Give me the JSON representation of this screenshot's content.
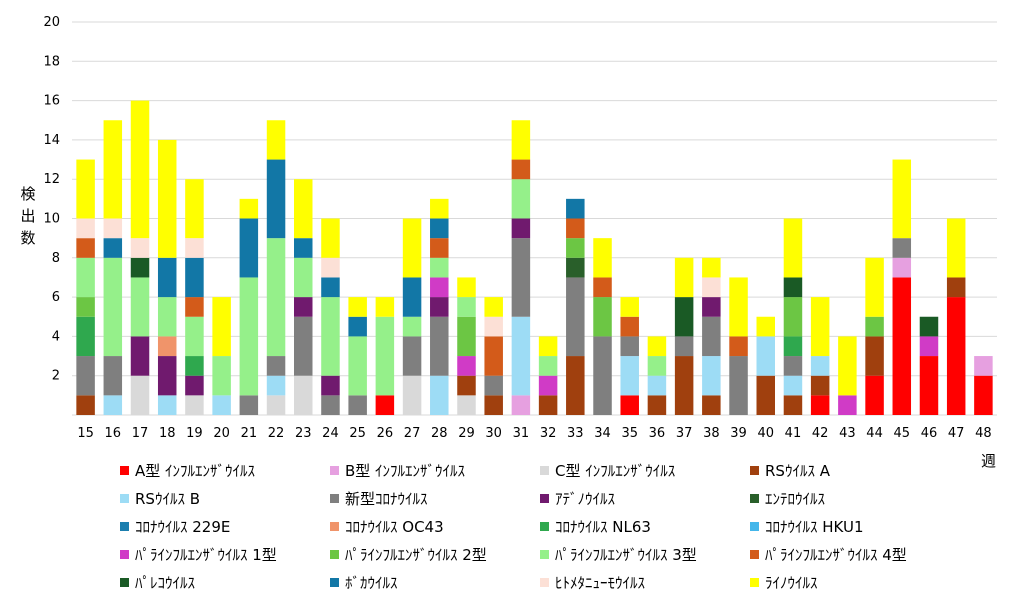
{
  "chart_data": {
    "type": "bar",
    "stacked": true,
    "title": "",
    "ylabel": "検出数",
    "xlabel": "週",
    "ylim": [
      0,
      20
    ],
    "yticks": [
      2,
      4,
      6,
      8,
      10,
      12,
      14,
      16,
      18,
      20
    ],
    "grid": true,
    "categories": [
      "15",
      "16",
      "17",
      "18",
      "19",
      "20",
      "21",
      "22",
      "23",
      "24",
      "25",
      "26",
      "27",
      "28",
      "29",
      "30",
      "31",
      "32",
      "33",
      "34",
      "35",
      "36",
      "37",
      "38",
      "39",
      "40",
      "41",
      "42",
      "43",
      "44",
      "45",
      "46",
      "47",
      "48"
    ],
    "series": [
      {
        "name": "A型 ｲﾝﾌﾙｴﾝｻﾞｳｲﾙｽ",
        "color": "#FF0000",
        "values": [
          0,
          0,
          0,
          0,
          0,
          0,
          0,
          0,
          0,
          0,
          0,
          1,
          0,
          0,
          0,
          0,
          0,
          0,
          0,
          0,
          1,
          0,
          0,
          0,
          0,
          0,
          0,
          1,
          0,
          2,
          7,
          3,
          6,
          2
        ]
      },
      {
        "name": "B型 ｲﾝﾌﾙｴﾝｻﾞｳｲﾙｽ",
        "color": "#E6A0E0",
        "values": [
          0,
          0,
          0,
          0,
          0,
          0,
          0,
          0,
          0,
          0,
          0,
          0,
          0,
          0,
          0,
          0,
          1,
          0,
          0,
          0,
          0,
          0,
          0,
          0,
          0,
          0,
          0,
          0,
          0,
          0,
          1,
          0,
          0,
          1
        ]
      },
      {
        "name": "C型 ｲﾝﾌﾙｴﾝｻﾞｳｲﾙｽ",
        "color": "#D9D9D9",
        "values": [
          0,
          0,
          2,
          0,
          1,
          0,
          0,
          1,
          2,
          0,
          0,
          0,
          2,
          0,
          1,
          0,
          0,
          0,
          0,
          0,
          0,
          0,
          0,
          0,
          0,
          0,
          0,
          0,
          0,
          0,
          0,
          0,
          0,
          0
        ]
      },
      {
        "name": "RSｳｲﾙｽ A",
        "color": "#A0400E",
        "values": [
          1,
          0,
          0,
          0,
          0,
          0,
          0,
          0,
          0,
          0,
          0,
          0,
          0,
          0,
          1,
          1,
          0,
          1,
          3,
          0,
          0,
          1,
          3,
          1,
          0,
          2,
          1,
          1,
          0,
          2,
          0,
          0,
          1,
          0
        ]
      },
      {
        "name": "RSｳｲﾙｽ B",
        "color": "#9DDCF5",
        "values": [
          0,
          1,
          0,
          1,
          0,
          1,
          0,
          1,
          0,
          0,
          0,
          0,
          0,
          2,
          0,
          0,
          4,
          0,
          0,
          0,
          2,
          1,
          0,
          2,
          0,
          2,
          1,
          1,
          0,
          0,
          0,
          0,
          0,
          0
        ]
      },
      {
        "name": "新型ｺﾛﾅｳｲﾙｽ",
        "color": "#7F7F7F",
        "values": [
          2,
          2,
          0,
          0,
          0,
          0,
          1,
          1,
          3,
          1,
          1,
          0,
          2,
          3,
          0,
          1,
          4,
          0,
          4,
          4,
          1,
          0,
          1,
          2,
          3,
          0,
          1,
          0,
          0,
          0,
          1,
          0,
          0,
          0
        ]
      },
      {
        "name": "ｱﾃﾞﾉｳｲﾙｽ",
        "color": "#701A6E",
        "values": [
          0,
          0,
          2,
          2,
          1,
          0,
          0,
          0,
          1,
          1,
          0,
          0,
          0,
          1,
          0,
          0,
          1,
          0,
          0,
          0,
          0,
          0,
          0,
          1,
          0,
          0,
          0,
          0,
          0,
          0,
          0,
          0,
          0,
          0
        ]
      },
      {
        "name": "ｴﾝﾃﾛｳｲﾙｽ",
        "color": "#295F2A",
        "values": [
          0,
          0,
          0,
          0,
          0,
          0,
          0,
          0,
          0,
          0,
          0,
          0,
          0,
          0,
          0,
          0,
          0,
          0,
          1,
          0,
          0,
          0,
          0,
          0,
          0,
          0,
          0,
          0,
          0,
          0,
          0,
          0,
          0,
          0
        ]
      },
      {
        "name": "ｺﾛﾅｳｲﾙｽ 229E",
        "color": "#1C7EAE",
        "values": [
          0,
          0,
          0,
          0,
          0,
          0,
          0,
          0,
          0,
          0,
          0,
          0,
          0,
          0,
          0,
          0,
          0,
          0,
          0,
          0,
          0,
          0,
          0,
          0,
          0,
          0,
          0,
          0,
          0,
          0,
          0,
          0,
          0,
          0
        ]
      },
      {
        "name": "ｺﾛﾅｳｲﾙｽ OC43",
        "color": "#F0946A",
        "values": [
          0,
          0,
          0,
          1,
          0,
          0,
          0,
          0,
          0,
          0,
          0,
          0,
          0,
          0,
          0,
          0,
          0,
          0,
          0,
          0,
          0,
          0,
          0,
          0,
          0,
          0,
          0,
          0,
          0,
          0,
          0,
          0,
          0,
          0
        ]
      },
      {
        "name": "ｺﾛﾅｳｲﾙｽ NL63",
        "color": "#2FA84E",
        "values": [
          2,
          0,
          0,
          0,
          1,
          0,
          0,
          0,
          0,
          0,
          0,
          0,
          0,
          0,
          0,
          0,
          0,
          0,
          0,
          0,
          0,
          0,
          0,
          0,
          0,
          0,
          1,
          0,
          0,
          0,
          0,
          0,
          0,
          0
        ]
      },
      {
        "name": "ｺﾛﾅｳｲﾙｽ HKU1",
        "color": "#44B6EA",
        "values": [
          0,
          0,
          0,
          0,
          0,
          0,
          0,
          0,
          0,
          0,
          0,
          0,
          0,
          0,
          0,
          0,
          0,
          0,
          0,
          0,
          0,
          0,
          0,
          0,
          0,
          0,
          0,
          0,
          0,
          0,
          0,
          0,
          0,
          0
        ]
      },
      {
        "name": "ﾊﾟﾗｲﾝﾌﾙｴﾝｻﾞｳｲﾙｽ 1型",
        "color": "#D03BC6",
        "values": [
          0,
          0,
          0,
          0,
          0,
          0,
          0,
          0,
          0,
          0,
          0,
          0,
          0,
          1,
          1,
          0,
          0,
          1,
          0,
          0,
          0,
          0,
          0,
          0,
          0,
          0,
          0,
          0,
          1,
          0,
          0,
          1,
          0,
          0
        ]
      },
      {
        "name": "ﾊﾟﾗｲﾝﾌﾙｴﾝｻﾞｳｲﾙｽ 2型",
        "color": "#6CC644",
        "values": [
          1,
          0,
          0,
          0,
          0,
          0,
          0,
          0,
          0,
          0,
          0,
          0,
          0,
          0,
          2,
          0,
          0,
          0,
          1,
          2,
          0,
          0,
          0,
          0,
          0,
          0,
          2,
          0,
          0,
          1,
          0,
          0,
          0,
          0
        ]
      },
      {
        "name": "ﾊﾟﾗｲﾝﾌﾙｴﾝｻﾞｳｲﾙｽ 3型",
        "color": "#95F08A",
        "values": [
          2,
          5,
          3,
          2,
          2,
          2,
          6,
          6,
          2,
          4,
          3,
          4,
          1,
          1,
          1,
          0,
          2,
          1,
          0,
          0,
          0,
          1,
          0,
          0,
          0,
          0,
          0,
          0,
          0,
          0,
          0,
          0,
          0,
          0
        ]
      },
      {
        "name": "ﾊﾟﾗｲﾝﾌﾙｴﾝｻﾞｳｲﾙｽ 4型",
        "color": "#D35B1A",
        "values": [
          1,
          0,
          0,
          0,
          1,
          0,
          0,
          0,
          0,
          0,
          0,
          0,
          0,
          1,
          0,
          2,
          1,
          0,
          1,
          1,
          1,
          0,
          0,
          0,
          1,
          0,
          0,
          0,
          0,
          0,
          0,
          0,
          0,
          0
        ]
      },
      {
        "name": "ﾊﾟﾚｺｳｲﾙｽ",
        "color": "#1A5A25",
        "values": [
          0,
          0,
          1,
          0,
          0,
          0,
          0,
          0,
          0,
          0,
          0,
          0,
          0,
          0,
          0,
          0,
          0,
          0,
          0,
          0,
          0,
          0,
          2,
          0,
          0,
          0,
          1,
          0,
          0,
          0,
          0,
          1,
          0,
          0
        ]
      },
      {
        "name": "ﾎﾞｶｳｲﾙｽ",
        "color": "#1277A6",
        "values": [
          0,
          1,
          0,
          2,
          2,
          0,
          3,
          4,
          1,
          1,
          1,
          0,
          2,
          1,
          0,
          0,
          0,
          0,
          1,
          0,
          0,
          0,
          0,
          0,
          0,
          0,
          0,
          0,
          0,
          0,
          0,
          0,
          0,
          0
        ]
      },
      {
        "name": "ﾋﾄﾒﾀﾆｭｰﾓｳｲﾙｽ",
        "color": "#FCE0D6",
        "values": [
          1,
          1,
          1,
          0,
          1,
          0,
          0,
          0,
          0,
          1,
          0,
          0,
          0,
          0,
          0,
          1,
          0,
          0,
          0,
          0,
          0,
          0,
          0,
          1,
          0,
          0,
          0,
          0,
          0,
          0,
          0,
          0,
          0,
          0
        ]
      },
      {
        "name": "ﾗｲﾉｳｲﾙｽ",
        "color": "#FFFF00",
        "values": [
          3,
          5,
          7,
          6,
          3,
          3,
          1,
          2,
          3,
          2,
          1,
          1,
          3,
          1,
          1,
          1,
          2,
          1,
          0,
          2,
          1,
          1,
          2,
          1,
          3,
          1,
          3,
          3,
          3,
          3,
          4,
          0,
          3,
          0
        ]
      }
    ]
  }
}
